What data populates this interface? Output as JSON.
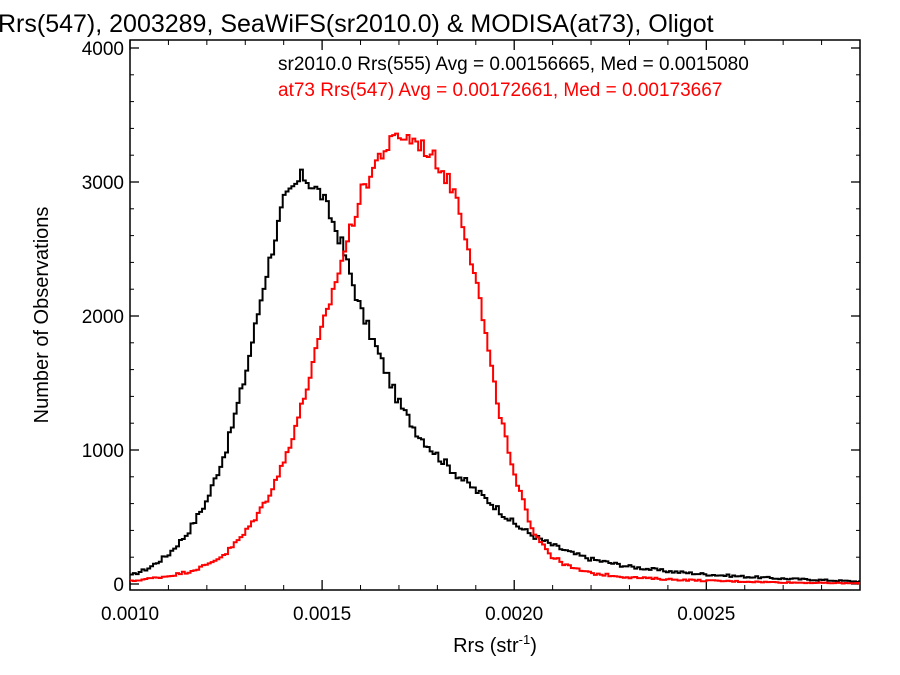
{
  "chart_data": {
    "type": "line",
    "title": "Rrs(547), 2003289, SeaWiFS(sr2010.0) & MODISA(at73), Oligot",
    "xlabel": "Rrs (str",
    "xlabel_sup": "-1",
    "xlabel_end": ")",
    "ylabel": "Number of Observations",
    "xlim": [
      0.001,
      0.0029
    ],
    "ylim": [
      0,
      4000
    ],
    "x_ticks": [
      0.001,
      0.0015,
      0.002,
      0.0025
    ],
    "x_tick_labels": [
      "0.0010",
      "0.0015",
      "0.0020",
      "0.0025"
    ],
    "y_ticks": [
      0,
      1000,
      2000,
      3000,
      4000
    ],
    "y_tick_labels": [
      "0",
      "1000",
      "2000",
      "3000",
      "4000"
    ],
    "annotations": [
      "sr2010.0 Rrs(555) Avg = 0.00156665, Med = 0.0015080",
      "at73 Rrs(547) Avg = 0.00172661, Med = 0.00173667"
    ],
    "series": [
      {
        "color": "#000000",
        "x": [
          0.001,
          0.00105,
          0.0011,
          0.00115,
          0.0012,
          0.00125,
          0.0013,
          0.00135,
          0.0014,
          0.00145,
          0.0015,
          0.00155,
          0.0016,
          0.00165,
          0.0017,
          0.00175,
          0.0018,
          0.00185,
          0.0019,
          0.00195,
          0.002,
          0.00205,
          0.0021,
          0.00215,
          0.0022,
          0.0023,
          0.0024,
          0.0025,
          0.0026,
          0.0027,
          0.0028,
          0.0029
        ],
        "values": [
          60,
          120,
          220,
          380,
          620,
          1000,
          1550,
          2250,
          2850,
          3050,
          2900,
          2550,
          2050,
          1700,
          1350,
          1120,
          960,
          820,
          700,
          580,
          450,
          360,
          290,
          230,
          185,
          130,
          95,
          72,
          55,
          40,
          30,
          18
        ]
      },
      {
        "color": "#ff0000",
        "x": [
          0.001,
          0.00105,
          0.0011,
          0.00115,
          0.0012,
          0.00125,
          0.0013,
          0.00135,
          0.0014,
          0.00145,
          0.0015,
          0.00155,
          0.0016,
          0.00165,
          0.0017,
          0.00175,
          0.0018,
          0.00185,
          0.0019,
          0.00195,
          0.002,
          0.00205,
          0.0021,
          0.00215,
          0.0022,
          0.0023,
          0.0024,
          0.0025,
          0.0026,
          0.0027,
          0.0028,
          0.0029
        ],
        "values": [
          20,
          40,
          60,
          90,
          140,
          230,
          380,
          600,
          900,
          1350,
          1900,
          2400,
          2900,
          3200,
          3350,
          3300,
          3150,
          2900,
          2300,
          1450,
          800,
          400,
          200,
          120,
          80,
          50,
          35,
          25,
          18,
          12,
          8,
          5
        ]
      }
    ]
  }
}
